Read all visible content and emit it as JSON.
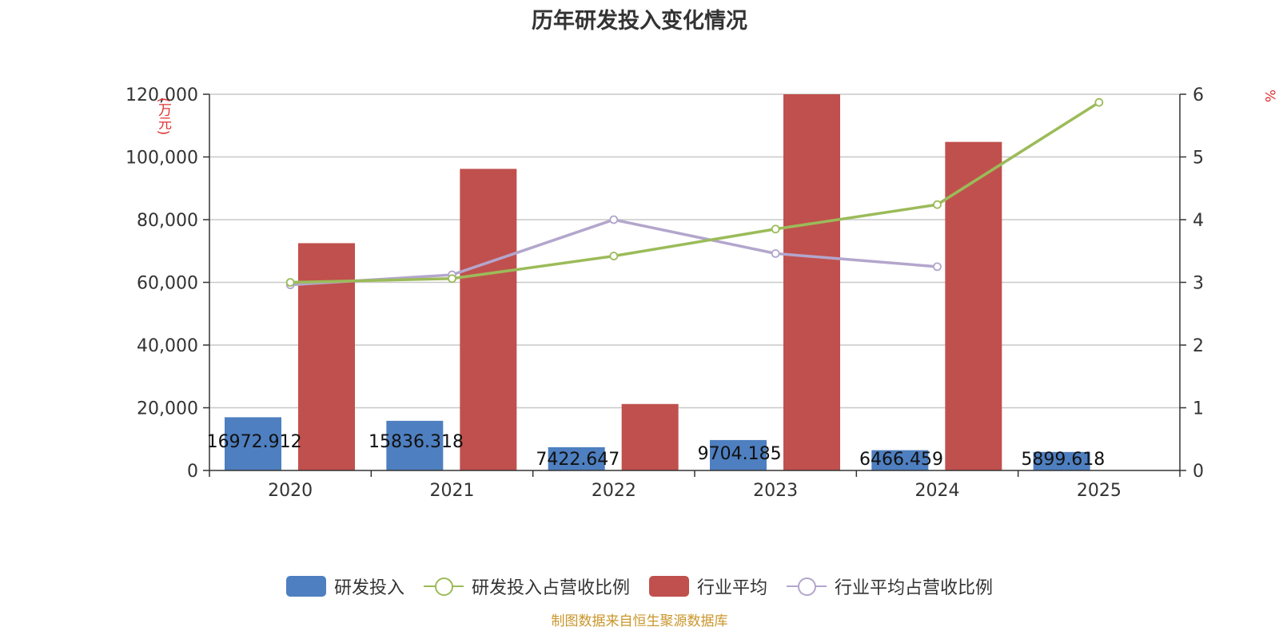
{
  "title": "历年研发投入变化情况",
  "source": "制图数据来自恒生聚源数据库",
  "colors": {
    "rd": "#4e7fc0",
    "rd_ratio": "#9bbb59",
    "industry": "#c0504d",
    "industry_ratio": "#b3a6cc",
    "axis_label": "#e03030"
  },
  "chart_data": {
    "type": "bar",
    "title": "历年研发投入变化情况",
    "categories": [
      "2020",
      "2021",
      "2022",
      "2023",
      "2024",
      "2025"
    ],
    "y_left": {
      "label": "(万元)",
      "range": [
        0,
        120000
      ],
      "ticks": [
        "0",
        "20,000",
        "40,000",
        "60,000",
        "80,000",
        "100,000",
        "120,000"
      ]
    },
    "y_right": {
      "label": "%",
      "range": [
        0,
        6
      ],
      "ticks": [
        "0",
        "1",
        "2",
        "3",
        "4",
        "5",
        "6"
      ]
    },
    "grid": true,
    "legend_position": "bottom",
    "series": [
      {
        "name": "研发投入",
        "type": "bar",
        "axis": "left",
        "values": [
          16972.912,
          15836.318,
          7422.647,
          9704.185,
          6466.459,
          5899.618
        ],
        "labels": [
          "16972.912",
          "15836.318",
          "7422.647",
          "9704.185",
          "6466.459",
          "5899.618"
        ]
      },
      {
        "name": "研发投入占营收比例",
        "type": "line",
        "axis": "right",
        "values": [
          3.0,
          3.06,
          3.42,
          3.85,
          4.24,
          5.87
        ]
      },
      {
        "name": "行业平均",
        "type": "bar",
        "axis": "left",
        "values": [
          72500,
          96200,
          21200,
          120000,
          104800,
          null
        ]
      },
      {
        "name": "行业平均占营收比例",
        "type": "line",
        "axis": "right",
        "values": [
          2.96,
          3.12,
          4.0,
          3.46,
          3.25,
          null
        ]
      }
    ]
  }
}
